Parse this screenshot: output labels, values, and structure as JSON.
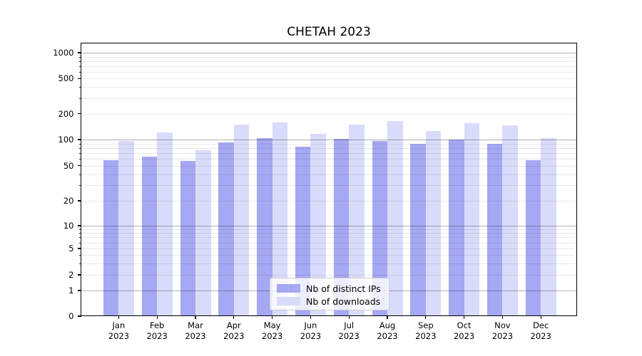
{
  "title": "CHETAH 2023",
  "chart_data": {
    "type": "bar",
    "title": "CHETAH 2023",
    "x": {
      "months": [
        "Jan",
        "Feb",
        "Mar",
        "Apr",
        "May",
        "Jun",
        "Jul",
        "Aug",
        "Sep",
        "Oct",
        "Nov",
        "Dec"
      ],
      "year": "2023"
    },
    "series": [
      {
        "name": "Nb of distinct IPs",
        "color": "#a5a8f2",
        "values": [
          58,
          64,
          57,
          93,
          104,
          82,
          101,
          97,
          90,
          100,
          89,
          58
        ]
      },
      {
        "name": "Nb of downloads",
        "color": "#d9dbfa",
        "values": [
          97,
          121,
          75,
          150,
          158,
          117,
          149,
          163,
          126,
          154,
          146,
          104
        ]
      }
    ],
    "y_axis": {
      "scale": "symlog",
      "tick_labels": [
        0,
        1,
        2,
        5,
        10,
        20,
        50,
        100,
        200,
        500,
        1000
      ],
      "ylim": [
        0,
        1300
      ],
      "grid": true
    },
    "legend": {
      "location": "lower center"
    }
  },
  "colors": {
    "major_grid": "#b4b4b4",
    "minor_grid": "#e9e9e9",
    "axis": "#000000",
    "background": "#ffffff"
  }
}
